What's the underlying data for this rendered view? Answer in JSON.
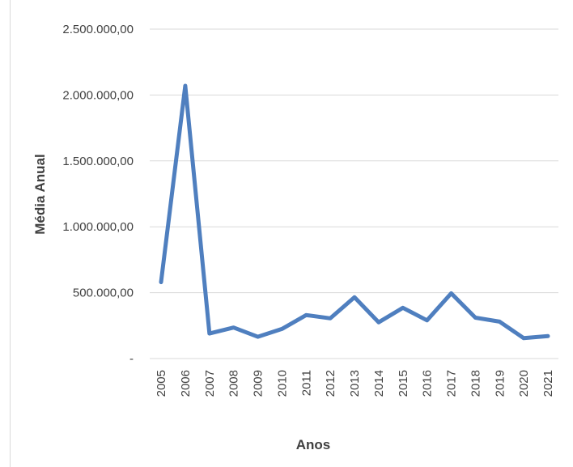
{
  "chart_data": {
    "type": "line",
    "title": "",
    "xlabel": "Anos",
    "ylabel": "Média Anual",
    "categories": [
      "2005",
      "2006",
      "2007",
      "2008",
      "2009",
      "2010",
      "2011",
      "2012",
      "2013",
      "2014",
      "2015",
      "2016",
      "2017",
      "2018",
      "2019",
      "2020",
      "2021"
    ],
    "series": [
      {
        "values": [
          580000,
          2070000,
          190000,
          235000,
          165000,
          225000,
          330000,
          305000,
          465000,
          275000,
          385000,
          290000,
          495000,
          310000,
          280000,
          155000,
          170000
        ]
      }
    ],
    "ylim": [
      0,
      2500000
    ],
    "yticks": [
      0,
      500000,
      1000000,
      1500000,
      2000000,
      2500000
    ],
    "ytick_labels": [
      "-",
      "500.000,00",
      "1.000.000,00",
      "1.500.000,00",
      "2.000.000,00",
      "2.500.000,00"
    ],
    "grid": true,
    "legend": "none",
    "colors": {
      "line": "#4f7fbf",
      "grid": "#d9d9d9",
      "text": "#404040"
    }
  }
}
